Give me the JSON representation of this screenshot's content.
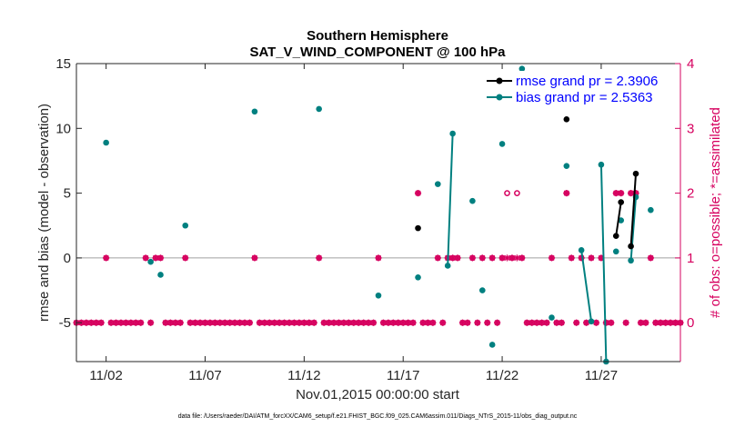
{
  "chart_data": {
    "type": "scatter",
    "title": [
      "Southern Hemisphere",
      "SAT_V_WIND_COMPONENT @ 100 hPa"
    ],
    "xlabel": "Nov.01,2015 00:00:00 start",
    "ylabel": "rmse and bias (model - observation)",
    "y2label": "# of obs: o=possible; *=assimilated",
    "xlim": [
      0.5,
      31
    ],
    "ylim": [
      -8,
      15
    ],
    "y2lim": [
      -0.6,
      4
    ],
    "x_ticks": [
      2,
      7,
      12,
      17,
      22,
      27
    ],
    "x_tick_labels": [
      "11/02",
      "11/07",
      "11/12",
      "11/17",
      "11/22",
      "11/27"
    ],
    "y_ticks": [
      -5,
      0,
      5,
      10,
      15
    ],
    "y_tick_labels": [
      "-5",
      "0",
      "5",
      "10",
      "15"
    ],
    "y2_ticks": [
      0,
      1,
      2,
      3,
      4
    ],
    "y2_tick_labels": [
      "0",
      "1",
      "2",
      "3",
      "4"
    ],
    "legend": [
      {
        "name": "rmse grand pr = 2.3906",
        "color": "#000000"
      },
      {
        "name": "bias grand pr = 2.5363",
        "color": "#008080"
      }
    ],
    "legend_position": "top-right",
    "rmse_isolated": [
      [
        17.75,
        2.3
      ],
      [
        25.25,
        10.7
      ]
    ],
    "rmse_segments": [
      [
        [
          27.75,
          1.7
        ],
        [
          28.0,
          4.3
        ]
      ],
      [
        [
          28.5,
          0.9
        ],
        [
          28.75,
          6.5
        ]
      ]
    ],
    "bias_isolated": [
      [
        2.0,
        8.9
      ],
      [
        4.25,
        -0.3
      ],
      [
        4.75,
        -1.3
      ],
      [
        6.0,
        2.5
      ],
      [
        9.5,
        11.3
      ],
      [
        12.75,
        11.5
      ],
      [
        15.75,
        -2.9
      ],
      [
        17.75,
        -1.5
      ],
      [
        18.75,
        5.7
      ],
      [
        20.5,
        4.4
      ],
      [
        21.0,
        -2.5
      ],
      [
        21.5,
        -6.7
      ],
      [
        22.0,
        8.8
      ],
      [
        23.0,
        14.6
      ],
      [
        24.5,
        -4.6
      ],
      [
        25.25,
        7.1
      ],
      [
        27.75,
        0.5
      ],
      [
        28.0,
        2.9
      ],
      [
        29.5,
        3.7
      ]
    ],
    "bias_segments": [
      [
        [
          19.25,
          -0.6
        ],
        [
          19.5,
          9.6
        ]
      ],
      [
        [
          26.0,
          0.6
        ],
        [
          26.5,
          -4.9
        ]
      ],
      [
        [
          27.0,
          7.2
        ],
        [
          27.25,
          -8.0
        ]
      ],
      [
        [
          28.5,
          -0.2
        ],
        [
          28.75,
          4.7
        ]
      ]
    ],
    "obs_possible_series": [
      [
        0.5,
        0
      ],
      [
        0.75,
        0
      ],
      [
        1.0,
        0
      ],
      [
        1.25,
        0
      ],
      [
        1.5,
        0
      ],
      [
        1.75,
        0
      ],
      [
        2.0,
        1
      ],
      [
        2.25,
        0
      ],
      [
        2.5,
        0
      ],
      [
        2.75,
        0
      ],
      [
        3.0,
        0
      ],
      [
        3.25,
        0
      ],
      [
        3.5,
        0
      ],
      [
        3.75,
        0
      ],
      [
        4.0,
        1
      ],
      [
        4.25,
        0
      ],
      [
        4.5,
        1
      ],
      [
        4.75,
        1
      ],
      [
        5.0,
        0
      ],
      [
        5.25,
        0
      ],
      [
        5.5,
        0
      ],
      [
        5.75,
        0
      ],
      [
        6.0,
        1
      ],
      [
        6.25,
        0
      ],
      [
        6.5,
        0
      ],
      [
        6.75,
        0
      ],
      [
        7.0,
        0
      ],
      [
        7.25,
        0
      ],
      [
        7.5,
        0
      ],
      [
        7.75,
        0
      ],
      [
        8.0,
        0
      ],
      [
        8.25,
        0
      ],
      [
        8.5,
        0
      ],
      [
        8.75,
        0
      ],
      [
        9.0,
        0
      ],
      [
        9.25,
        0
      ],
      [
        9.5,
        1
      ],
      [
        9.75,
        0
      ],
      [
        10.0,
        0
      ],
      [
        10.25,
        0
      ],
      [
        10.5,
        0
      ],
      [
        10.75,
        0
      ],
      [
        11.0,
        0
      ],
      [
        11.25,
        0
      ],
      [
        11.5,
        0
      ],
      [
        11.75,
        0
      ],
      [
        12.0,
        0
      ],
      [
        12.25,
        0
      ],
      [
        12.5,
        0
      ],
      [
        12.75,
        1
      ],
      [
        13.0,
        0
      ],
      [
        13.25,
        0
      ],
      [
        13.5,
        0
      ],
      [
        13.75,
        0
      ],
      [
        14.0,
        0
      ],
      [
        14.25,
        0
      ],
      [
        14.5,
        0
      ],
      [
        14.75,
        0
      ],
      [
        15.0,
        0
      ],
      [
        15.25,
        0
      ],
      [
        15.5,
        0
      ],
      [
        15.75,
        1
      ],
      [
        16.0,
        0
      ],
      [
        16.25,
        0
      ],
      [
        16.5,
        0
      ],
      [
        16.75,
        0
      ],
      [
        17.0,
        0
      ],
      [
        17.25,
        0
      ],
      [
        17.5,
        0
      ],
      [
        17.75,
        2
      ],
      [
        18.0,
        0
      ],
      [
        18.25,
        0
      ],
      [
        18.5,
        0
      ],
      [
        18.75,
        1
      ],
      [
        19.0,
        0
      ],
      [
        19.25,
        1
      ],
      [
        19.5,
        1
      ],
      [
        19.75,
        1
      ],
      [
        20.0,
        0
      ],
      [
        20.25,
        0
      ],
      [
        20.5,
        1
      ],
      [
        20.75,
        0
      ],
      [
        21.0,
        1
      ],
      [
        21.25,
        0
      ],
      [
        21.5,
        1
      ],
      [
        21.75,
        0
      ],
      [
        22.0,
        1
      ],
      [
        22.25,
        2
      ],
      [
        22.5,
        1
      ],
      [
        22.75,
        2
      ],
      [
        23.0,
        1
      ],
      [
        23.25,
        0
      ],
      [
        23.5,
        0
      ],
      [
        23.75,
        0
      ],
      [
        24.0,
        0
      ],
      [
        24.25,
        0
      ],
      [
        24.5,
        1
      ],
      [
        24.75,
        0
      ],
      [
        25.0,
        0
      ],
      [
        25.25,
        2
      ],
      [
        25.5,
        1
      ],
      [
        25.75,
        0
      ],
      [
        26.0,
        1
      ],
      [
        26.25,
        0
      ],
      [
        26.5,
        1
      ],
      [
        26.75,
        0
      ],
      [
        27.0,
        1
      ],
      [
        27.25,
        0
      ],
      [
        27.5,
        0
      ],
      [
        27.75,
        2
      ],
      [
        28.0,
        2
      ],
      [
        28.25,
        0
      ],
      [
        28.5,
        2
      ],
      [
        28.75,
        2
      ],
      [
        29.0,
        0
      ],
      [
        29.25,
        0
      ],
      [
        29.5,
        1
      ],
      [
        29.75,
        0
      ],
      [
        30.0,
        0
      ],
      [
        30.25,
        0
      ],
      [
        30.5,
        0
      ],
      [
        30.75,
        0
      ],
      [
        31.0,
        0
      ]
    ],
    "obs_assimilated_series": [
      [
        0.5,
        0
      ],
      [
        0.75,
        0
      ],
      [
        1.0,
        0
      ],
      [
        1.25,
        0
      ],
      [
        1.5,
        0
      ],
      [
        1.75,
        0
      ],
      [
        2.0,
        1
      ],
      [
        2.25,
        0
      ],
      [
        2.5,
        0
      ],
      [
        2.75,
        0
      ],
      [
        3.0,
        0
      ],
      [
        3.25,
        0
      ],
      [
        3.5,
        0
      ],
      [
        3.75,
        0
      ],
      [
        4.0,
        1
      ],
      [
        4.25,
        0
      ],
      [
        4.5,
        1
      ],
      [
        4.75,
        1
      ],
      [
        5.0,
        0
      ],
      [
        5.25,
        0
      ],
      [
        5.5,
        0
      ],
      [
        5.75,
        0
      ],
      [
        6.0,
        1
      ],
      [
        6.25,
        0
      ],
      [
        6.5,
        0
      ],
      [
        6.75,
        0
      ],
      [
        7.0,
        0
      ],
      [
        7.25,
        0
      ],
      [
        7.5,
        0
      ],
      [
        7.75,
        0
      ],
      [
        8.0,
        0
      ],
      [
        8.25,
        0
      ],
      [
        8.5,
        0
      ],
      [
        8.75,
        0
      ],
      [
        9.0,
        0
      ],
      [
        9.25,
        0
      ],
      [
        9.5,
        1
      ],
      [
        9.75,
        0
      ],
      [
        10.0,
        0
      ],
      [
        10.25,
        0
      ],
      [
        10.5,
        0
      ],
      [
        10.75,
        0
      ],
      [
        11.0,
        0
      ],
      [
        11.25,
        0
      ],
      [
        11.5,
        0
      ],
      [
        11.75,
        0
      ],
      [
        12.0,
        0
      ],
      [
        12.25,
        0
      ],
      [
        12.5,
        0
      ],
      [
        12.75,
        1
      ],
      [
        13.0,
        0
      ],
      [
        13.25,
        0
      ],
      [
        13.5,
        0
      ],
      [
        13.75,
        0
      ],
      [
        14.0,
        0
      ],
      [
        14.25,
        0
      ],
      [
        14.5,
        0
      ],
      [
        14.75,
        0
      ],
      [
        15.0,
        0
      ],
      [
        15.25,
        0
      ],
      [
        15.5,
        0
      ],
      [
        15.75,
        1
      ],
      [
        16.0,
        0
      ],
      [
        16.25,
        0
      ],
      [
        16.5,
        0
      ],
      [
        16.75,
        0
      ],
      [
        17.0,
        0
      ],
      [
        17.25,
        0
      ],
      [
        17.5,
        0
      ],
      [
        17.75,
        2
      ],
      [
        18.0,
        0
      ],
      [
        18.25,
        0
      ],
      [
        18.5,
        0
      ],
      [
        18.75,
        1
      ],
      [
        19.0,
        0
      ],
      [
        19.25,
        1
      ],
      [
        19.5,
        1
      ],
      [
        19.75,
        1
      ],
      [
        20.0,
        0
      ],
      [
        20.25,
        0
      ],
      [
        20.5,
        1
      ],
      [
        20.75,
        0
      ],
      [
        21.0,
        1
      ],
      [
        21.25,
        0
      ],
      [
        21.5,
        1
      ],
      [
        21.75,
        0
      ],
      [
        22.0,
        1
      ],
      [
        22.25,
        1
      ],
      [
        22.5,
        1
      ],
      [
        22.75,
        1
      ],
      [
        23.0,
        1
      ],
      [
        23.25,
        0
      ],
      [
        23.5,
        0
      ],
      [
        23.75,
        0
      ],
      [
        24.0,
        0
      ],
      [
        24.25,
        0
      ],
      [
        24.5,
        1
      ],
      [
        24.75,
        0
      ],
      [
        25.0,
        0
      ],
      [
        25.25,
        2
      ],
      [
        25.5,
        1
      ],
      [
        25.75,
        0
      ],
      [
        26.0,
        1
      ],
      [
        26.25,
        0
      ],
      [
        26.5,
        1
      ],
      [
        26.75,
        0
      ],
      [
        27.0,
        1
      ],
      [
        27.25,
        0
      ],
      [
        27.5,
        0
      ],
      [
        27.75,
        2
      ],
      [
        28.0,
        2
      ],
      [
        28.25,
        0
      ],
      [
        28.5,
        2
      ],
      [
        28.75,
        2
      ],
      [
        29.0,
        0
      ],
      [
        29.25,
        0
      ],
      [
        29.5,
        1
      ],
      [
        29.75,
        0
      ],
      [
        30.0,
        0
      ],
      [
        30.25,
        0
      ],
      [
        30.5,
        0
      ],
      [
        30.75,
        0
      ],
      [
        31.0,
        0
      ]
    ],
    "colors": {
      "rmse": "#000000",
      "bias": "#008080",
      "obs": "#d6005f",
      "zero_line": "#a0a0a0",
      "legend_text": "#0000ff"
    },
    "footnote": "data file: /Users/raeder/DAI/ATM_forcXX/CAM6_setup/f.e21.FHIST_BGC.f09_025.CAM6assim.011/Diags_NTrS_2015-11/obs_diag_output.nc"
  }
}
